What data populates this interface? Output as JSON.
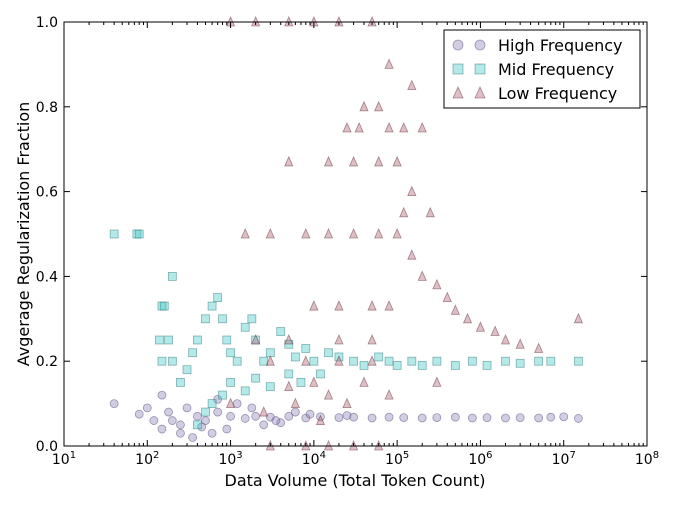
{
  "chart_data": {
    "type": "scatter",
    "title": "",
    "xlabel": "Data Volume (Total Token Count)",
    "ylabel": "Avgerage Regularization Fraction",
    "x_scale": "log",
    "xlim": [
      10,
      100000000
    ],
    "ylim": [
      0.0,
      1.0
    ],
    "grid": false,
    "legend_position": "top-right",
    "x_ticks": [
      10,
      100,
      1000,
      10000,
      100000,
      1000000,
      10000000,
      100000000
    ],
    "x_tick_base": "10",
    "x_tick_exponents": [
      "1",
      "2",
      "3",
      "4",
      "5",
      "6",
      "7",
      "8"
    ],
    "y_ticks": [
      "0.0",
      "0.2",
      "0.4",
      "0.6",
      "0.8",
      "1.0"
    ],
    "series": [
      {
        "name": "High Frequency",
        "marker": "circle",
        "color": "#8e83b8",
        "edge_color": "#4a4070",
        "points": [
          [
            40,
            0.1
          ],
          [
            80,
            0.075
          ],
          [
            100,
            0.09
          ],
          [
            120,
            0.06
          ],
          [
            150,
            0.12
          ],
          [
            180,
            0.08
          ],
          [
            200,
            0.06
          ],
          [
            250,
            0.05
          ],
          [
            300,
            0.09
          ],
          [
            400,
            0.07
          ],
          [
            500,
            0.06
          ],
          [
            700,
            0.08
          ],
          [
            1000,
            0.07
          ],
          [
            1500,
            0.065
          ],
          [
            2000,
            0.07
          ],
          [
            3000,
            0.068
          ],
          [
            5000,
            0.07
          ],
          [
            8000,
            0.066
          ],
          [
            12000,
            0.069
          ],
          [
            20000,
            0.067
          ],
          [
            30000,
            0.068
          ],
          [
            50000,
            0.066
          ],
          [
            80000,
            0.068
          ],
          [
            120000,
            0.067
          ],
          [
            200000,
            0.066
          ],
          [
            300000,
            0.067
          ],
          [
            500000,
            0.068
          ],
          [
            800000,
            0.066
          ],
          [
            1200000,
            0.067
          ],
          [
            2000000,
            0.066
          ],
          [
            3000000,
            0.067
          ],
          [
            5000000,
            0.066
          ],
          [
            7000000,
            0.068
          ],
          [
            10000000,
            0.069
          ],
          [
            15000000,
            0.065
          ],
          [
            600,
            0.03
          ],
          [
            900,
            0.04
          ],
          [
            2500,
            0.05
          ],
          [
            4000,
            0.055
          ],
          [
            6000,
            0.08
          ],
          [
            250,
            0.03
          ],
          [
            350,
            0.02
          ],
          [
            150,
            0.04
          ],
          [
            1200,
            0.1
          ],
          [
            1800,
            0.09
          ],
          [
            700,
            0.11
          ],
          [
            450,
            0.045
          ],
          [
            3500,
            0.06
          ],
          [
            9000,
            0.075
          ],
          [
            25000,
            0.072
          ]
        ]
      },
      {
        "name": "Mid Frequency",
        "marker": "square",
        "color": "#40c8c8",
        "edge_color": "#1f7070",
        "points": [
          [
            40,
            0.5
          ],
          [
            75,
            0.5
          ],
          [
            80,
            0.5
          ],
          [
            200,
            0.4
          ],
          [
            150,
            0.33
          ],
          [
            160,
            0.33
          ],
          [
            180,
            0.25
          ],
          [
            140,
            0.25
          ],
          [
            150,
            0.2
          ],
          [
            200,
            0.2
          ],
          [
            250,
            0.15
          ],
          [
            300,
            0.18
          ],
          [
            350,
            0.22
          ],
          [
            400,
            0.25
          ],
          [
            500,
            0.3
          ],
          [
            600,
            0.33
          ],
          [
            700,
            0.35
          ],
          [
            800,
            0.3
          ],
          [
            900,
            0.25
          ],
          [
            1000,
            0.22
          ],
          [
            1200,
            0.2
          ],
          [
            1500,
            0.28
          ],
          [
            1800,
            0.3
          ],
          [
            2000,
            0.25
          ],
          [
            2500,
            0.2
          ],
          [
            3000,
            0.22
          ],
          [
            4000,
            0.27
          ],
          [
            5000,
            0.24
          ],
          [
            6000,
            0.21
          ],
          [
            8000,
            0.23
          ],
          [
            10000,
            0.2
          ],
          [
            15000,
            0.22
          ],
          [
            20000,
            0.21
          ],
          [
            30000,
            0.2
          ],
          [
            40000,
            0.19
          ],
          [
            60000,
            0.21
          ],
          [
            80000,
            0.2
          ],
          [
            100000,
            0.19
          ],
          [
            150000,
            0.2
          ],
          [
            200000,
            0.19
          ],
          [
            300000,
            0.2
          ],
          [
            500000,
            0.19
          ],
          [
            800000,
            0.2
          ],
          [
            1200000,
            0.19
          ],
          [
            2000000,
            0.2
          ],
          [
            3000000,
            0.195
          ],
          [
            5000000,
            0.2
          ],
          [
            7000000,
            0.2
          ],
          [
            15000000,
            0.2
          ],
          [
            600,
            0.1
          ],
          [
            800,
            0.12
          ],
          [
            1000,
            0.15
          ],
          [
            1500,
            0.13
          ],
          [
            2000,
            0.16
          ],
          [
            3000,
            0.14
          ],
          [
            5000,
            0.17
          ],
          [
            7000,
            0.15
          ],
          [
            12000,
            0.17
          ],
          [
            500,
            0.08
          ],
          [
            400,
            0.05
          ]
        ]
      },
      {
        "name": "Low Frequency",
        "marker": "triangle",
        "color": "#b06070",
        "edge_color": "#5a1f2c",
        "points": [
          [
            1000,
            1.0
          ],
          [
            2000,
            1.0
          ],
          [
            5000,
            1.0
          ],
          [
            10000,
            1.0
          ],
          [
            20000,
            1.0
          ],
          [
            50000,
            1.0
          ],
          [
            80000,
            0.9
          ],
          [
            150000,
            0.85
          ],
          [
            40000,
            0.8
          ],
          [
            60000,
            0.8
          ],
          [
            25000,
            0.75
          ],
          [
            35000,
            0.75
          ],
          [
            80000,
            0.75
          ],
          [
            120000,
            0.75
          ],
          [
            200000,
            0.75
          ],
          [
            5000,
            0.67
          ],
          [
            15000,
            0.67
          ],
          [
            30000,
            0.67
          ],
          [
            60000,
            0.67
          ],
          [
            100000,
            0.67
          ],
          [
            150000,
            0.6
          ],
          [
            120000,
            0.55
          ],
          [
            250000,
            0.55
          ],
          [
            1500,
            0.5
          ],
          [
            3000,
            0.5
          ],
          [
            8000,
            0.5
          ],
          [
            15000,
            0.5
          ],
          [
            30000,
            0.5
          ],
          [
            60000,
            0.5
          ],
          [
            100000,
            0.5
          ],
          [
            150000,
            0.45
          ],
          [
            200000,
            0.4
          ],
          [
            300000,
            0.38
          ],
          [
            400000,
            0.35
          ],
          [
            10000,
            0.33
          ],
          [
            20000,
            0.33
          ],
          [
            50000,
            0.33
          ],
          [
            80000,
            0.33
          ],
          [
            500000,
            0.32
          ],
          [
            700000,
            0.3
          ],
          [
            1000000,
            0.28
          ],
          [
            1500000,
            0.27
          ],
          [
            2000000,
            0.25
          ],
          [
            3000000,
            0.24
          ],
          [
            5000000,
            0.23
          ],
          [
            15000000,
            0.3
          ],
          [
            2000,
            0.25
          ],
          [
            5000,
            0.25
          ],
          [
            20000,
            0.25
          ],
          [
            50000,
            0.25
          ],
          [
            3000,
            0.2
          ],
          [
            8000,
            0.2
          ],
          [
            20000,
            0.2
          ],
          [
            50000,
            0.2
          ],
          [
            10000,
            0.15
          ],
          [
            40000,
            0.15
          ],
          [
            5000,
            0.14
          ],
          [
            15000,
            0.12
          ],
          [
            80000,
            0.12
          ],
          [
            300000,
            0.15
          ],
          [
            3000,
            0.0
          ],
          [
            8000,
            0.0
          ],
          [
            15000,
            0.0
          ],
          [
            30000,
            0.0
          ],
          [
            60000,
            0.0
          ],
          [
            1000,
            0.1
          ],
          [
            2500,
            0.08
          ],
          [
            6000,
            0.1
          ],
          [
            12000,
            0.06
          ],
          [
            25000,
            0.1
          ]
        ]
      }
    ]
  }
}
